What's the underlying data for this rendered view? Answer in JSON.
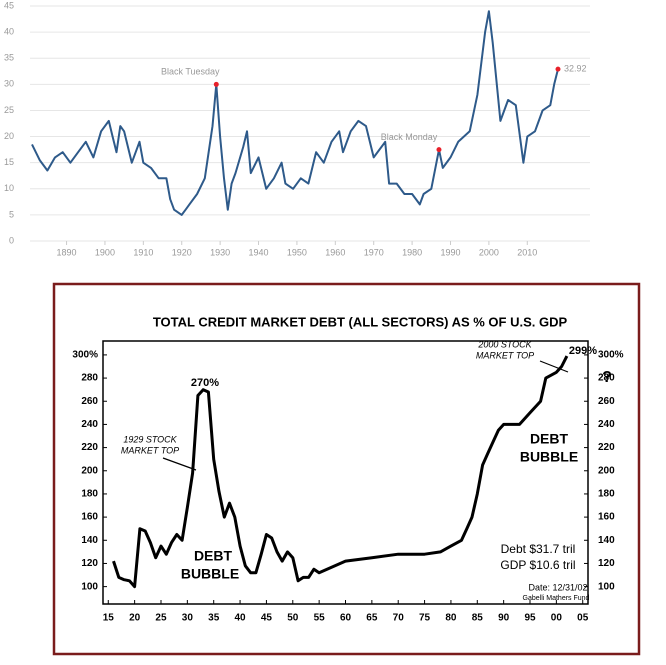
{
  "chart_data": [
    {
      "type": "line",
      "x": [
        1881,
        1883,
        1885,
        1887,
        1889,
        1891,
        1893,
        1895,
        1897,
        1899,
        1901,
        1902,
        1903,
        1904,
        1905,
        1907,
        1909,
        1910,
        1912,
        1914,
        1916,
        1917,
        1918,
        1920,
        1921,
        1922,
        1924,
        1926,
        1928,
        1929,
        1930,
        1931,
        1932,
        1933,
        1934,
        1936,
        1937,
        1938,
        1940,
        1942,
        1944,
        1946,
        1947,
        1949,
        1951,
        1953,
        1955,
        1957,
        1959,
        1961,
        1962,
        1964,
        1966,
        1968,
        1970,
        1972,
        1973,
        1974,
        1976,
        1978,
        1980,
        1982,
        1983,
        1985,
        1987,
        1988,
        1990,
        1992,
        1995,
        1997,
        1999,
        2000,
        2001,
        2003,
        2005,
        2007,
        2009,
        2010,
        2012,
        2014,
        2016,
        2017,
        2018
      ],
      "values": [
        18.5,
        15.5,
        13.5,
        16,
        17,
        15,
        17,
        19,
        16,
        21,
        23,
        20,
        17,
        22,
        21,
        15,
        19,
        15,
        14,
        12,
        12,
        8,
        6,
        5,
        6,
        7,
        9,
        12,
        22,
        30,
        20,
        12,
        6,
        11,
        13,
        18,
        21,
        13,
        16,
        10,
        12,
        15,
        11,
        10,
        12,
        11,
        17,
        15,
        19,
        21,
        17,
        21,
        23,
        22,
        16,
        18,
        19,
        11,
        11,
        9,
        9,
        7,
        9,
        10,
        17.5,
        14,
        16,
        19,
        21,
        28,
        40,
        44,
        38,
        23,
        27,
        26,
        15,
        20,
        21,
        25,
        26,
        30,
        32.92
      ],
      "color": "#2e5a8a",
      "marker_color": "#e8202a",
      "annotations": [
        "Black Tuesday",
        "Black Monday"
      ],
      "xlim": [
        1881,
        2018
      ],
      "xticks": [
        1890,
        1900,
        1910,
        1920,
        1930,
        1940,
        1950,
        1960,
        1970,
        1980,
        1990,
        2000,
        2010
      ],
      "ylim": [
        0,
        45
      ],
      "yticks": [
        0,
        5,
        10,
        15,
        20,
        25,
        30,
        35,
        40,
        45
      ],
      "grid": true
    },
    {
      "type": "line",
      "title": "TOTAL CREDIT MARKET DEBT (ALL SECTORS) AS % OF U.S. GDP",
      "x": [
        1916,
        1917,
        1918,
        1919,
        1920,
        1921,
        1922,
        1923,
        1924,
        1925,
        1926,
        1927,
        1928,
        1929,
        1930,
        1931,
        1932,
        1933,
        1934,
        1935,
        1936,
        1937,
        1938,
        1939,
        1940,
        1941,
        1942,
        1943,
        1944,
        1945,
        1946,
        1947,
        1948,
        1949,
        1950,
        1951,
        1952,
        1953,
        1954,
        1955,
        1960,
        1965,
        1970,
        1975,
        1978,
        1980,
        1982,
        1983,
        1984,
        1985,
        1986,
        1987,
        1988,
        1989,
        1990,
        1993,
        1995,
        1997,
        1998,
        2000,
        2001,
        2002
      ],
      "values": [
        122,
        108,
        106,
        105,
        100,
        150,
        148,
        138,
        125,
        135,
        128,
        138,
        145,
        140,
        168,
        198,
        265,
        270,
        268,
        210,
        182,
        160,
        172,
        160,
        135,
        118,
        112,
        112,
        128,
        145,
        142,
        130,
        122,
        130,
        125,
        105,
        108,
        108,
        115,
        112,
        122,
        125,
        128,
        128,
        130,
        135,
        140,
        150,
        160,
        180,
        205,
        215,
        225,
        235,
        240,
        240,
        250,
        260,
        280,
        285,
        290,
        299
      ],
      "color": "#000000",
      "annotations": [
        "270%",
        "299%",
        "1929 STOCK",
        "MARKET TOP",
        "2000 STOCK",
        "MARKET TOP",
        "DEBT",
        "BUBBLE",
        "DEBT",
        "BUBBLE",
        "?",
        "Debt $31.7 tril",
        "GDP $10.6 tril",
        "Date: 12/31/02",
        "Gabelli Mathers Fund"
      ],
      "xlim": [
        1914,
        2006
      ],
      "xticks": [
        {
          "value": 1915,
          "label": "15"
        },
        {
          "value": 1920,
          "label": "20"
        },
        {
          "value": 1925,
          "label": "25"
        },
        {
          "value": 1930,
          "label": "30"
        },
        {
          "value": 1935,
          "label": "35"
        },
        {
          "value": 1940,
          "label": "40"
        },
        {
          "value": 1945,
          "label": "45"
        },
        {
          "value": 1950,
          "label": "50"
        },
        {
          "value": 1955,
          "label": "55"
        },
        {
          "value": 1960,
          "label": "60"
        },
        {
          "value": 1965,
          "label": "65"
        },
        {
          "value": 1970,
          "label": "70"
        },
        {
          "value": 1975,
          "label": "75"
        },
        {
          "value": 1980,
          "label": "80"
        },
        {
          "value": 1985,
          "label": "85"
        },
        {
          "value": 1990,
          "label": "90"
        },
        {
          "value": 1995,
          "label": "95"
        },
        {
          "value": 2000,
          "label": "00"
        },
        {
          "value": 2005,
          "label": "05"
        }
      ],
      "ylim": [
        85,
        312
      ],
      "yticks": [
        100,
        120,
        140,
        160,
        180,
        200,
        220,
        240,
        260,
        280,
        {
          "value": 300,
          "label": "300%"
        }
      ]
    }
  ]
}
